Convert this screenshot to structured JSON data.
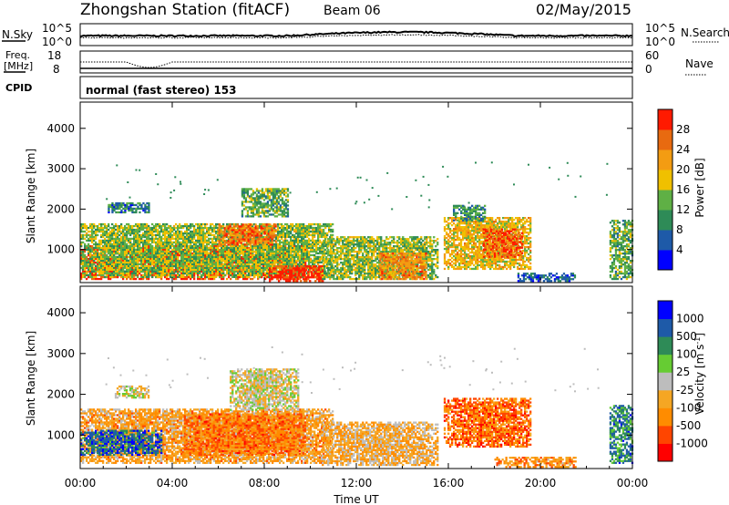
{
  "header": {
    "station": "Zhongshan Station (fitACF)",
    "beam": "Beam 06",
    "date": "02/May/2015"
  },
  "top_panels": {
    "nsky_label": "N.Sky",
    "nsky_ticks": [
      "10^5",
      "10^0"
    ],
    "nsearch_label": "N.Search",
    "nsearch_ticks": [
      "10^5",
      "10^0"
    ],
    "freq_label": "Freq.",
    "freq_unit": "[MHz]",
    "freq_ticks": [
      "18",
      "8"
    ],
    "nave_label": "Nave",
    "nave_ticks": [
      "60",
      "0"
    ],
    "cpid_label": "CPID",
    "cpid_text": "normal (fast stereo) 153"
  },
  "colors": {
    "power": [
      "#0000ff",
      "#1e5aa8",
      "#2e8b57",
      "#5fb045",
      "#f0c000",
      "#f39c12",
      "#e86a10",
      "#ff1a00"
    ],
    "velocity": [
      "#ff0000",
      "#ff4500",
      "#ff8c00",
      "#f5a623",
      "#bdbdbd",
      "#66cc33",
      "#2e8b57",
      "#1e5aa8",
      "#0000ff"
    ]
  },
  "chart_data": [
    {
      "type": "heatmap",
      "name": "power",
      "ylabel": "Slant Range [km]",
      "yticks": [
        1000,
        2000,
        3000,
        4000
      ],
      "ylim": [
        180,
        4650
      ],
      "colorbar_label": "Power [dB]",
      "colorbar_ticks": [
        "4",
        "8",
        "12",
        "16",
        "20",
        "24",
        "28"
      ],
      "clim": [
        0,
        30
      ],
      "blobs": [
        {
          "t0": 0.0,
          "t1": 9.8,
          "r0": 250,
          "r1": 1100,
          "v": 27
        },
        {
          "t0": 0.0,
          "t1": 11.0,
          "r0": 300,
          "r1": 1650,
          "v": 14
        },
        {
          "t0": 1.2,
          "t1": 3.0,
          "r0": 1900,
          "r1": 2150,
          "v": 8
        },
        {
          "t0": 6.0,
          "t1": 8.5,
          "r0": 1100,
          "r1": 1600,
          "v": 24
        },
        {
          "t0": 7.0,
          "t1": 9.0,
          "r0": 1800,
          "r1": 2500,
          "v": 12
        },
        {
          "t0": 8.2,
          "t1": 10.5,
          "r0": 200,
          "r1": 600,
          "v": 28
        },
        {
          "t0": 10.5,
          "t1": 15.5,
          "r0": 250,
          "r1": 1300,
          "v": 14
        },
        {
          "t0": 13.0,
          "t1": 15.0,
          "r0": 250,
          "r1": 900,
          "v": 22
        },
        {
          "t0": 15.8,
          "t1": 19.6,
          "r0": 500,
          "r1": 1800,
          "v": 18
        },
        {
          "t0": 17.5,
          "t1": 19.2,
          "r0": 800,
          "r1": 1500,
          "v": 26
        },
        {
          "t0": 16.2,
          "t1": 17.6,
          "r0": 1700,
          "r1": 2100,
          "v": 10
        },
        {
          "t0": 19.0,
          "t1": 21.5,
          "r0": 200,
          "r1": 400,
          "v": 6
        },
        {
          "t0": 23.0,
          "t1": 24.0,
          "r0": 250,
          "r1": 1700,
          "v": 12
        }
      ]
    },
    {
      "type": "heatmap",
      "name": "velocity",
      "ylabel": "Slant Range [km]",
      "yticks": [
        1000,
        2000,
        3000,
        4000
      ],
      "ylim": [
        180,
        4650
      ],
      "xlabel": "Time UT",
      "xticks": [
        "00:00",
        "04:00",
        "08:00",
        "12:00",
        "16:00",
        "20:00",
        "00:00"
      ],
      "xlim": [
        0,
        24
      ],
      "colorbar_label": "Velocity [m s",
      "colorbar_label_sup": "-1",
      "colorbar_label_tail": "]",
      "colorbar_ticks": [
        "1000",
        "500",
        "100",
        "25",
        "-25",
        "-100",
        "-500",
        "-1000"
      ],
      "blobs": [
        {
          "t0": 0.0,
          "t1": 11.0,
          "r0": 300,
          "r1": 1650,
          "v": 0.35
        },
        {
          "t0": 0.0,
          "t1": 3.5,
          "r0": 500,
          "r1": 1100,
          "v": 0.8
        },
        {
          "t0": 4.5,
          "t1": 9.8,
          "r0": 500,
          "r1": 1500,
          "v": 0.25
        },
        {
          "t0": 6.5,
          "t1": 9.5,
          "r0": 1600,
          "r1": 2600,
          "v": 0.48
        },
        {
          "t0": 1.5,
          "t1": 3.0,
          "r0": 1900,
          "r1": 2200,
          "v": 0.5
        },
        {
          "t0": 10.5,
          "t1": 15.5,
          "r0": 250,
          "r1": 1300,
          "v": 0.4
        },
        {
          "t0": 15.8,
          "t1": 19.6,
          "r0": 700,
          "r1": 1900,
          "v": 0.22
        },
        {
          "t0": 18.0,
          "t1": 21.5,
          "r0": 200,
          "r1": 450,
          "v": 0.3
        },
        {
          "t0": 23.0,
          "t1": 24.0,
          "r0": 300,
          "r1": 1700,
          "v": 0.75
        }
      ]
    }
  ]
}
